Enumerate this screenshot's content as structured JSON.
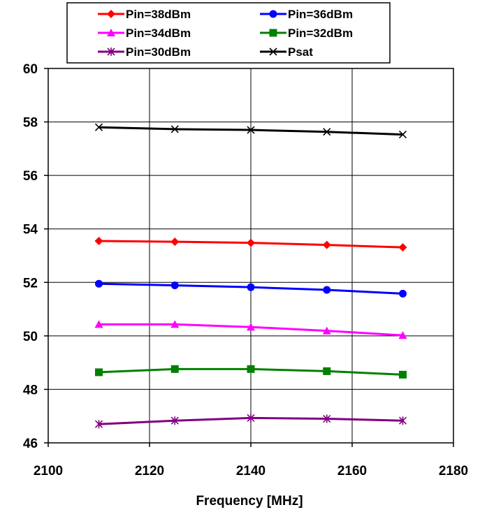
{
  "chart_data": {
    "type": "line",
    "title": "",
    "xlabel": "Frequency [MHz]",
    "ylabel": "",
    "xlim": [
      2100,
      2180
    ],
    "ylim": [
      46,
      60
    ],
    "xticks": [
      2100,
      2120,
      2140,
      2160,
      2180
    ],
    "yticks": [
      46,
      48,
      50,
      52,
      54,
      56,
      58,
      60
    ],
    "x_tick_labels": [
      "2100",
      "2120",
      "2140",
      "2160",
      "2180"
    ],
    "y_tick_labels": [
      "46",
      "48",
      "50",
      "52",
      "54",
      "56",
      "58",
      "60"
    ],
    "grid": true,
    "legend_position": "top",
    "x": [
      2110,
      2125,
      2140,
      2155,
      2170
    ],
    "series": [
      {
        "name": "Pin=38dBm",
        "color": "#ff0000",
        "marker": "diamond",
        "values": [
          53.55,
          53.52,
          53.48,
          53.4,
          53.31
        ]
      },
      {
        "name": "Pin=36dBm",
        "color": "#0000ff",
        "marker": "circle",
        "values": [
          51.95,
          51.89,
          51.82,
          51.72,
          51.58
        ]
      },
      {
        "name": "Pin=34dBm",
        "color": "#ff00ff",
        "marker": "triangle",
        "values": [
          50.43,
          50.43,
          50.33,
          50.19,
          50.02
        ]
      },
      {
        "name": "Pin=32dBm",
        "color": "#008000",
        "marker": "square",
        "values": [
          48.64,
          48.76,
          48.76,
          48.68,
          48.55
        ]
      },
      {
        "name": "Pin=30dBm",
        "color": "#800080",
        "marker": "asterisk",
        "values": [
          46.7,
          46.83,
          46.93,
          46.9,
          46.83
        ]
      },
      {
        "name": "Psat",
        "color": "#000000",
        "marker": "x",
        "values": [
          57.8,
          57.73,
          57.7,
          57.63,
          57.53
        ]
      }
    ]
  }
}
